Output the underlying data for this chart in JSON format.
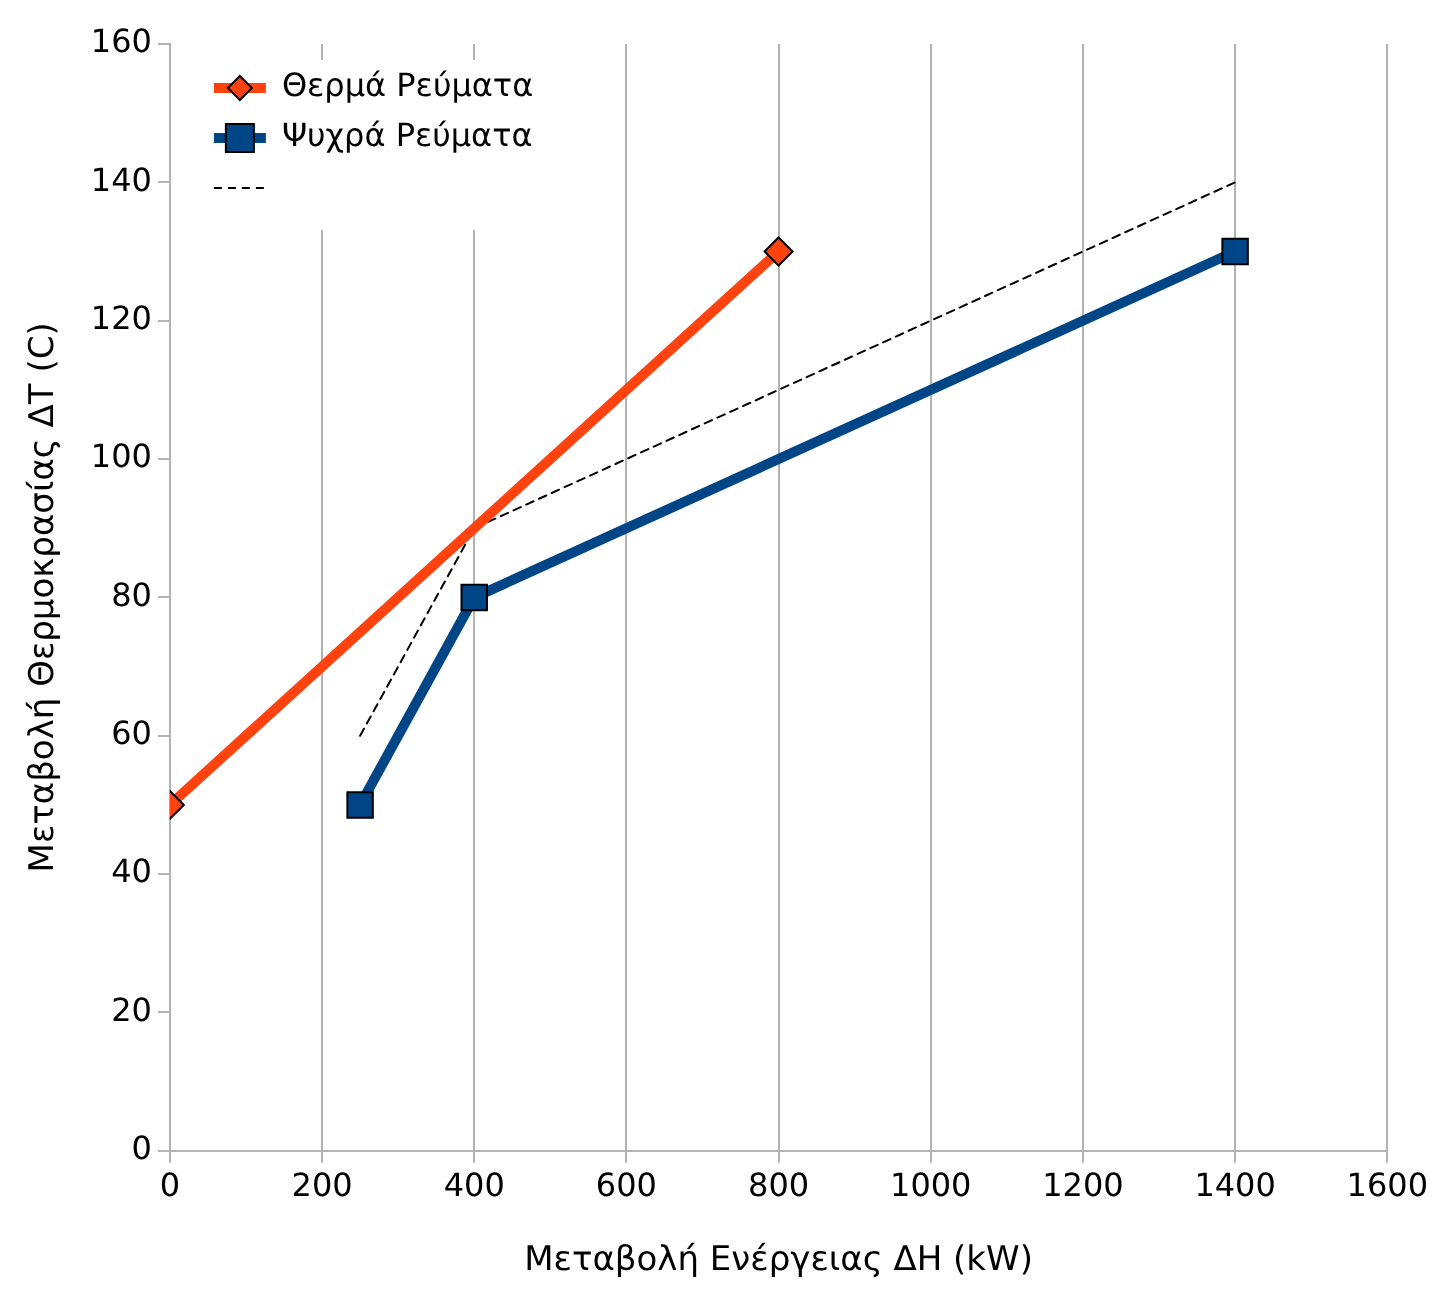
{
  "chart_data": {
    "type": "line",
    "xlabel": "Μεταβολή Ενέργειας ΔΗ (kW)",
    "ylabel": "Μεταβολή Θερμοκρασίας ΔΤ (C)",
    "xlim": [
      0,
      1600
    ],
    "xticks": [
      0,
      200,
      400,
      600,
      800,
      1000,
      1200,
      1400,
      1600
    ],
    "ylim": [
      0,
      160
    ],
    "yticks": [
      0,
      20,
      40,
      60,
      80,
      100,
      120,
      140,
      160
    ],
    "grid": "x",
    "legend": "top left",
    "series": [
      {
        "name": "Θερμά Ρεύματα",
        "color": "#ff420e",
        "x": [
          0,
          800
        ],
        "values": [
          50,
          130
        ],
        "marker": "diamond",
        "line_style": "solid"
      },
      {
        "name": "Ψυχρά Ρεύματα",
        "color": "#004586",
        "x": [
          250,
          400,
          1400
        ],
        "values": [
          50,
          80,
          130
        ],
        "marker": "square",
        "line_style": "solid"
      },
      {
        "color": "#000000",
        "x": [
          250,
          400,
          1400
        ],
        "values": [
          60,
          90,
          140
        ],
        "marker": "none",
        "line_style": "dashed"
      }
    ]
  }
}
